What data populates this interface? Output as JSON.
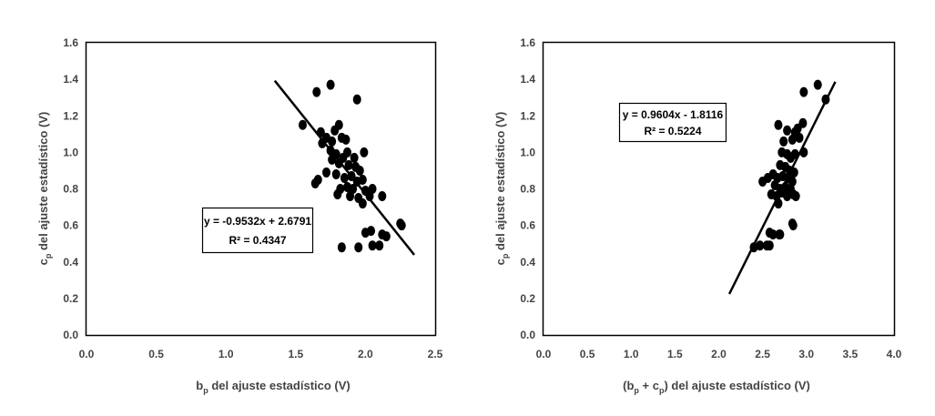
{
  "chart_data": [
    {
      "type": "scatter",
      "title": "",
      "xlabel_main": "b",
      "xlabel_sub": "p",
      "xlabel_rest": " del ajuste estadístico (V)",
      "ylabel_main": "c",
      "ylabel_sub": "p",
      "ylabel_rest": " del ajuste estadístico (V)",
      "xlim": [
        0,
        2.5
      ],
      "ylim": [
        0,
        1.6
      ],
      "xticks": [
        "0.0",
        "0.5",
        "1.0",
        "1.5",
        "2.0",
        "2.5"
      ],
      "yticks": [
        "0.0",
        "0.2",
        "0.4",
        "0.6",
        "0.8",
        "1.0",
        "1.2",
        "1.4",
        "1.6"
      ],
      "trendline": {
        "slope": -0.9532,
        "intercept": 2.6791,
        "x_range": [
          1.35,
          2.35
        ]
      },
      "equation": "y = -0.9532x + 2.6791",
      "r2": "R² = 0.4347",
      "points": [
        [
          1.55,
          1.15
        ],
        [
          1.65,
          1.33
        ],
        [
          1.75,
          1.37
        ],
        [
          1.94,
          1.29
        ],
        [
          1.68,
          1.11
        ],
        [
          1.72,
          1.08
        ],
        [
          1.78,
          1.12
        ],
        [
          1.81,
          1.15
        ],
        [
          1.76,
          1.06
        ],
        [
          1.86,
          1.07
        ],
        [
          1.69,
          1.05
        ],
        [
          1.83,
          1.08
        ],
        [
          1.99,
          1.0
        ],
        [
          1.75,
          1.01
        ],
        [
          1.79,
          0.99
        ],
        [
          1.84,
          0.97
        ],
        [
          1.87,
          1.0
        ],
        [
          1.92,
          0.97
        ],
        [
          1.76,
          0.96
        ],
        [
          1.81,
          0.94
        ],
        [
          1.88,
          0.93
        ],
        [
          1.93,
          0.92
        ],
        [
          1.96,
          0.9
        ],
        [
          1.72,
          0.89
        ],
        [
          1.79,
          0.88
        ],
        [
          1.85,
          0.86
        ],
        [
          1.9,
          0.87
        ],
        [
          1.94,
          0.84
        ],
        [
          1.98,
          0.85
        ],
        [
          1.66,
          0.85
        ],
        [
          1.64,
          0.83
        ],
        [
          1.82,
          0.8
        ],
        [
          1.87,
          0.81
        ],
        [
          1.91,
          0.8
        ],
        [
          2.0,
          0.79
        ],
        [
          2.05,
          0.8
        ],
        [
          1.8,
          0.77
        ],
        [
          1.89,
          0.76
        ],
        [
          1.95,
          0.75
        ],
        [
          2.03,
          0.76
        ],
        [
          2.12,
          0.76
        ],
        [
          1.98,
          0.72
        ],
        [
          2.0,
          0.56
        ],
        [
          2.04,
          0.57
        ],
        [
          2.12,
          0.55
        ],
        [
          2.15,
          0.54
        ],
        [
          2.25,
          0.61
        ],
        [
          2.26,
          0.6
        ],
        [
          1.83,
          0.48
        ],
        [
          1.95,
          0.48
        ],
        [
          2.05,
          0.49
        ],
        [
          2.1,
          0.49
        ]
      ]
    },
    {
      "type": "scatter",
      "title": "",
      "xlabel_pre": "(b",
      "xlabel_sub1": "p",
      "xlabel_mid": " + c",
      "xlabel_sub2": "p",
      "xlabel_rest": ") del ajuste estadístico (V)",
      "ylabel_main": "c",
      "ylabel_sub": "p",
      "ylabel_rest": " del ajuste estadístico (V)",
      "xlim": [
        0,
        4.0
      ],
      "ylim": [
        0,
        1.6
      ],
      "xticks": [
        "0.0",
        "0.5",
        "1.0",
        "1.5",
        "2.0",
        "2.5",
        "3.0",
        "3.5",
        "4.0"
      ],
      "yticks": [
        "0.0",
        "0.2",
        "0.4",
        "0.6",
        "0.8",
        "1.0",
        "1.2",
        "1.4",
        "1.6"
      ],
      "trendline": {
        "slope": 0.9604,
        "intercept": -1.8116,
        "x_range": [
          2.12,
          3.33
        ]
      },
      "equation": "y = 0.9604x - 1.8116",
      "r2": "R² = 0.5224",
      "points": [
        [
          3.13,
          1.37
        ],
        [
          2.97,
          1.33
        ],
        [
          3.22,
          1.29
        ],
        [
          2.68,
          1.15
        ],
        [
          2.96,
          1.16
        ],
        [
          2.78,
          1.12
        ],
        [
          2.87,
          1.11
        ],
        [
          2.9,
          1.13
        ],
        [
          2.74,
          1.06
        ],
        [
          2.84,
          1.07
        ],
        [
          2.92,
          1.08
        ],
        [
          2.97,
          1.0
        ],
        [
          2.72,
          1.0
        ],
        [
          2.78,
          0.99
        ],
        [
          2.82,
          0.97
        ],
        [
          2.87,
          0.99
        ],
        [
          2.7,
          0.93
        ],
        [
          2.76,
          0.92
        ],
        [
          2.81,
          0.9
        ],
        [
          2.86,
          0.89
        ],
        [
          2.62,
          0.88
        ],
        [
          2.67,
          0.86
        ],
        [
          2.73,
          0.87
        ],
        [
          2.79,
          0.86
        ],
        [
          2.84,
          0.84
        ],
        [
          2.56,
          0.86
        ],
        [
          2.5,
          0.84
        ],
        [
          2.64,
          0.82
        ],
        [
          2.7,
          0.8
        ],
        [
          2.76,
          0.81
        ],
        [
          2.82,
          0.8
        ],
        [
          2.6,
          0.77
        ],
        [
          2.66,
          0.76
        ],
        [
          2.72,
          0.78
        ],
        [
          2.78,
          0.76
        ],
        [
          2.85,
          0.77
        ],
        [
          2.88,
          0.76
        ],
        [
          2.68,
          0.72
        ],
        [
          2.58,
          0.56
        ],
        [
          2.62,
          0.55
        ],
        [
          2.69,
          0.55
        ],
        [
          2.7,
          0.55
        ],
        [
          2.84,
          0.61
        ],
        [
          2.85,
          0.6
        ],
        [
          2.4,
          0.48
        ],
        [
          2.47,
          0.49
        ],
        [
          2.55,
          0.49
        ],
        [
          2.58,
          0.49
        ]
      ]
    }
  ]
}
